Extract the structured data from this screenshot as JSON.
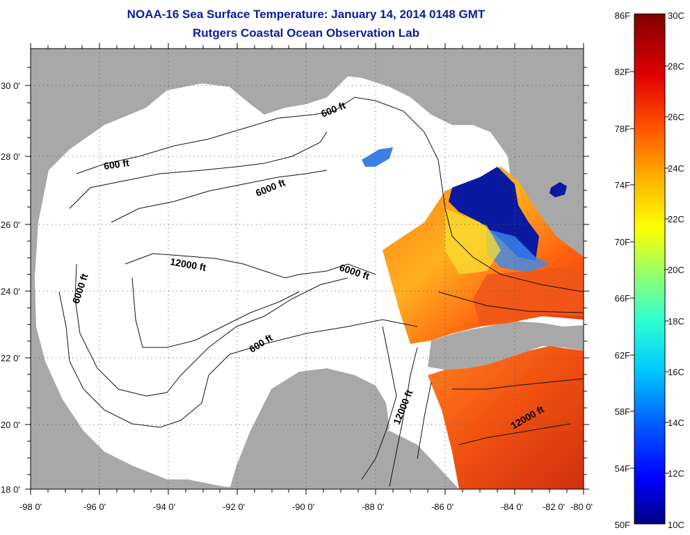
{
  "header": {
    "title": "NOAA-16 Sea Surface Temperature:  January 14, 2014 0148 GMT",
    "subtitle": "Rutgers Coastal Ocean Observation Lab"
  },
  "axes": {
    "lon_labels": [
      "-98 0'",
      "-96 0'",
      "-94 0'",
      "-92 0'",
      "-90 0'",
      "-88 0'",
      "-86 0'",
      "-84 0'",
      "-82 0'",
      "-80 0'"
    ],
    "lat_labels": [
      "30 0'",
      "28 0'",
      "26 0'",
      "24 0'",
      "22 0'",
      "20 0'",
      "18 0'"
    ]
  },
  "contour_labels": [
    {
      "id": "c600a",
      "text": "600 ft"
    },
    {
      "id": "c600b",
      "text": "600 ft"
    },
    {
      "id": "c600c",
      "text": "600 ft"
    },
    {
      "id": "c6000a",
      "text": "6000 ft"
    },
    {
      "id": "c6000b",
      "text": "6000 ft"
    },
    {
      "id": "c6000c",
      "text": "6000 ft"
    },
    {
      "id": "c12000a",
      "text": "12000 ft"
    },
    {
      "id": "c12000b",
      "text": "12000 ft"
    },
    {
      "id": "c12000c",
      "text": "12000 ft"
    }
  ],
  "colorbar": {
    "fahrenheit": [
      "86F",
      "82F",
      "78F",
      "74F",
      "70F",
      "66F",
      "62F",
      "58F",
      "54F",
      "50F"
    ],
    "celsius": [
      "30C",
      "28C",
      "26C",
      "24C",
      "22C",
      "20C",
      "18C",
      "16C",
      "14C",
      "12C",
      "10C"
    ],
    "colors": [
      "#000090",
      "#0000ff",
      "#0060ff",
      "#00c0ff",
      "#30ffd0",
      "#a0ff60",
      "#ffff00",
      "#ffc000",
      "#ff6000",
      "#ff0000",
      "#c00000",
      "#800000"
    ]
  },
  "colors": {
    "land": "#a8a8a8",
    "ocean": "#ffffff",
    "title": "#0a1c9c"
  }
}
